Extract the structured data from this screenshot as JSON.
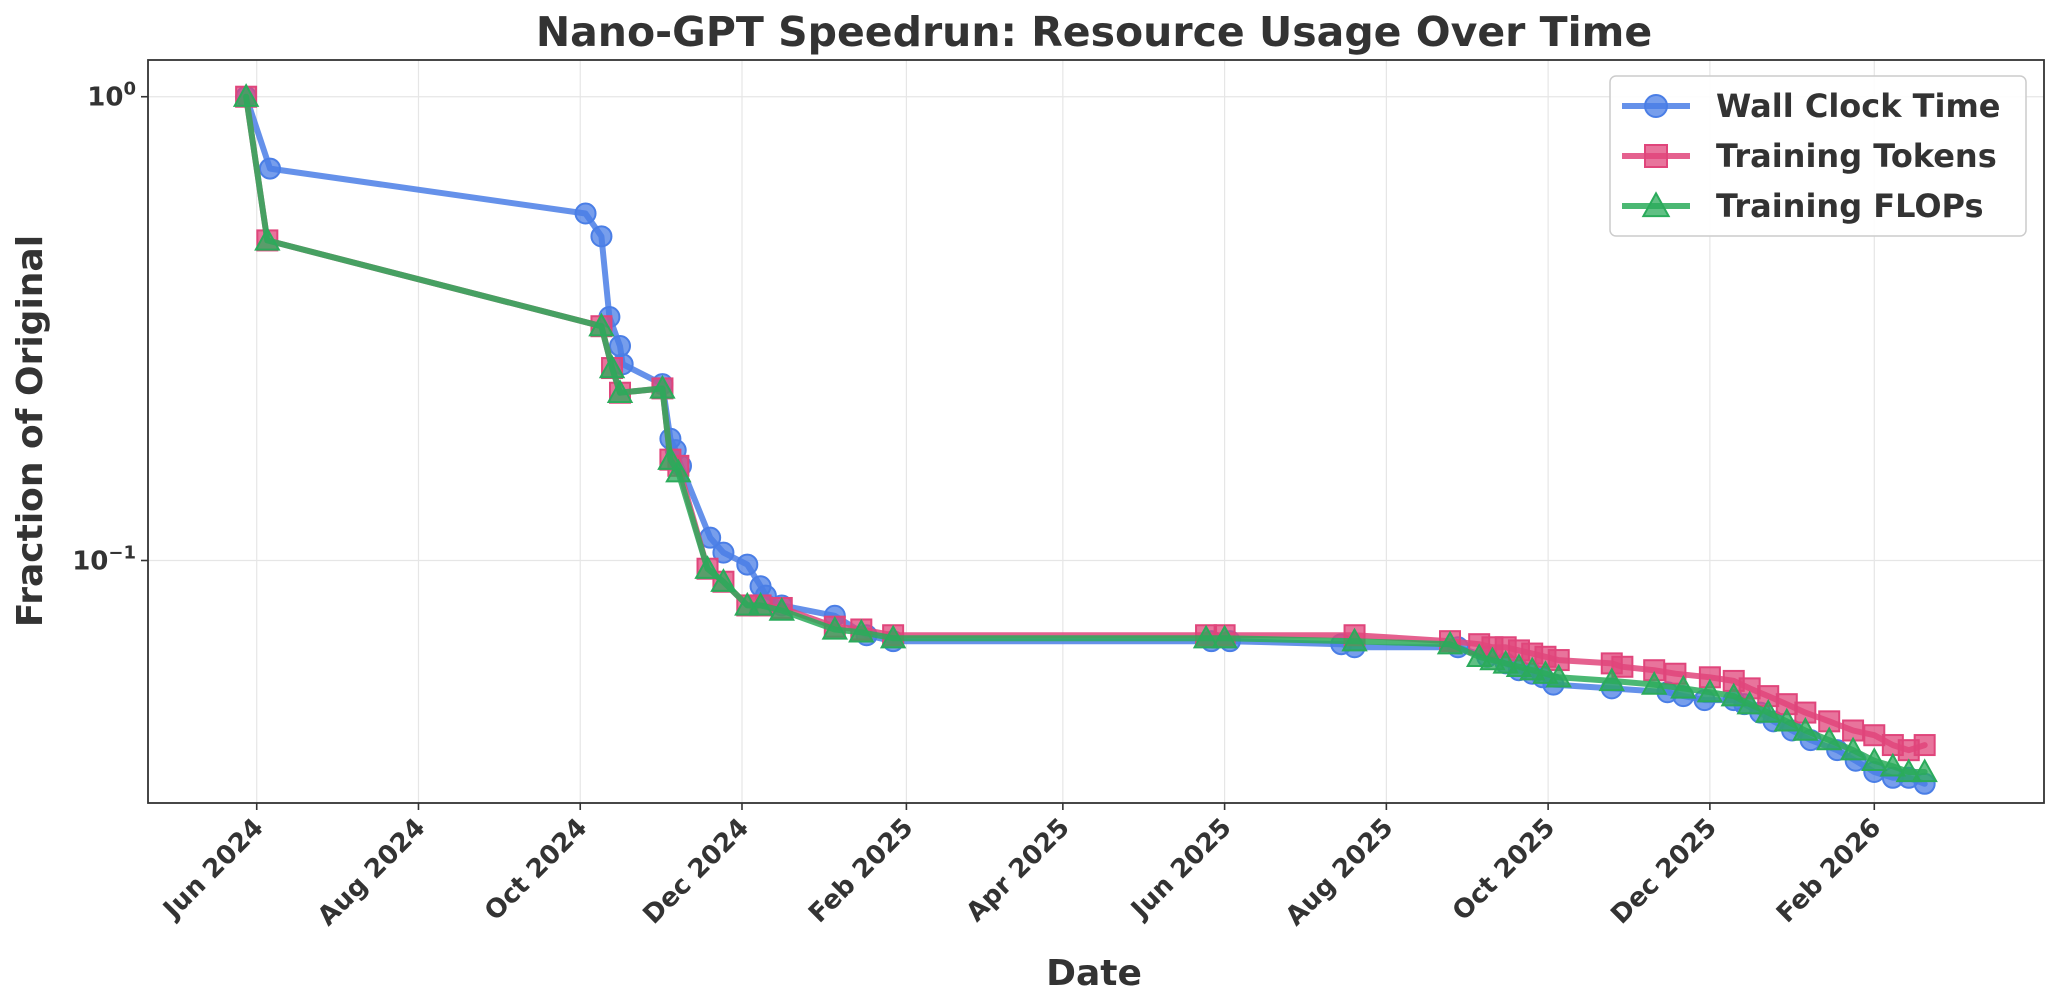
{
  "chart_data": {
    "type": "line",
    "title": "Nano-GPT Speedrun: Resource Usage Over Time",
    "xlabel": "Date",
    "ylabel": "Fraction of Original",
    "yscale": "log",
    "ylim": [
      0.03,
      1.2
    ],
    "xlim": [
      "2024-04-21",
      "2026-04-06"
    ],
    "grid": true,
    "legend_position": "top-right",
    "x_ticks": [
      {
        "date": "2024-06-01",
        "label": "Jun 2024"
      },
      {
        "date": "2024-08-01",
        "label": "Aug 2024"
      },
      {
        "date": "2024-10-01",
        "label": "Oct 2024"
      },
      {
        "date": "2024-12-01",
        "label": "Dec 2024"
      },
      {
        "date": "2025-02-01",
        "label": "Feb 2025"
      },
      {
        "date": "2025-04-01",
        "label": "Apr 2025"
      },
      {
        "date": "2025-06-01",
        "label": "Jun 2025"
      },
      {
        "date": "2025-08-01",
        "label": "Aug 2025"
      },
      {
        "date": "2025-10-01",
        "label": "Oct 2025"
      },
      {
        "date": "2025-12-01",
        "label": "Dec 2025"
      },
      {
        "date": "2026-02-01",
        "label": "Feb 2026"
      }
    ],
    "y_ticks": [
      {
        "value": 1,
        "base": "10",
        "exp": "0"
      },
      {
        "value": 0.1,
        "base": "10",
        "exp": "−1"
      }
    ],
    "series": [
      {
        "name": "Wall Clock Time",
        "color": "#4a7ee6",
        "marker": "circle",
        "points": [
          [
            "2024-05-28",
            1.0
          ],
          [
            "2024-06-06",
            0.7
          ],
          [
            "2024-10-03",
            0.56
          ],
          [
            "2024-10-09",
            0.5
          ],
          [
            "2024-10-12",
            0.335
          ],
          [
            "2024-10-16",
            0.29
          ],
          [
            "2024-10-17",
            0.265
          ],
          [
            "2024-11-01",
            0.24
          ],
          [
            "2024-11-04",
            0.183
          ],
          [
            "2024-11-06",
            0.173
          ],
          [
            "2024-11-08",
            0.16
          ],
          [
            "2024-11-19",
            0.112
          ],
          [
            "2024-11-24",
            0.104
          ],
          [
            "2024-12-03",
            0.098
          ],
          [
            "2024-12-08",
            0.088
          ],
          [
            "2024-12-10",
            0.084
          ],
          [
            "2024-12-16",
            0.08
          ],
          [
            "2025-01-05",
            0.076
          ],
          [
            "2025-01-17",
            0.069
          ],
          [
            "2025-01-27",
            0.067
          ],
          [
            "2025-05-27",
            0.067
          ],
          [
            "2025-06-03",
            0.067
          ],
          [
            "2025-07-15",
            0.066
          ],
          [
            "2025-07-20",
            0.065
          ],
          [
            "2025-08-28",
            0.065
          ],
          [
            "2025-09-08",
            0.062
          ],
          [
            "2025-09-15",
            0.06
          ],
          [
            "2025-09-20",
            0.058
          ],
          [
            "2025-09-25",
            0.057
          ],
          [
            "2025-09-29",
            0.056
          ],
          [
            "2025-10-03",
            0.054
          ],
          [
            "2025-10-25",
            0.053
          ],
          [
            "2025-11-15",
            0.052
          ],
          [
            "2025-11-21",
            0.051
          ],
          [
            "2025-11-29",
            0.05
          ],
          [
            "2025-12-10",
            0.05
          ],
          [
            "2025-12-14",
            0.049
          ],
          [
            "2025-12-20",
            0.047
          ],
          [
            "2025-12-25",
            0.045
          ],
          [
            "2026-01-01",
            0.043
          ],
          [
            "2026-01-08",
            0.041
          ],
          [
            "2026-01-18",
            0.039
          ],
          [
            "2026-01-25",
            0.037
          ],
          [
            "2026-02-01",
            0.035
          ],
          [
            "2026-02-08",
            0.034
          ],
          [
            "2026-02-14",
            0.034
          ],
          [
            "2026-02-20",
            0.033
          ]
        ]
      },
      {
        "name": "Training Tokens",
        "color": "#e0457b",
        "marker": "square",
        "points": [
          [
            "2024-05-28",
            1.0
          ],
          [
            "2024-06-05",
            0.49
          ],
          [
            "2024-10-09",
            0.32
          ],
          [
            "2024-10-13",
            0.26
          ],
          [
            "2024-10-16",
            0.23
          ],
          [
            "2024-11-01",
            0.235
          ],
          [
            "2024-11-04",
            0.165
          ],
          [
            "2024-11-07",
            0.16
          ],
          [
            "2024-11-18",
            0.096
          ],
          [
            "2024-11-24",
            0.09
          ],
          [
            "2024-12-03",
            0.08
          ],
          [
            "2024-12-08",
            0.08
          ],
          [
            "2024-12-16",
            0.079
          ],
          [
            "2025-01-05",
            0.072
          ],
          [
            "2025-01-15",
            0.071
          ],
          [
            "2025-01-27",
            0.069
          ],
          [
            "2025-05-25",
            0.069
          ],
          [
            "2025-06-01",
            0.069
          ],
          [
            "2025-07-20",
            0.069
          ],
          [
            "2025-08-25",
            0.067
          ],
          [
            "2025-09-05",
            0.066
          ],
          [
            "2025-09-10",
            0.065
          ],
          [
            "2025-09-15",
            0.065
          ],
          [
            "2025-09-20",
            0.064
          ],
          [
            "2025-09-25",
            0.063
          ],
          [
            "2025-09-30",
            0.062
          ],
          [
            "2025-10-05",
            0.061
          ],
          [
            "2025-10-25",
            0.06
          ],
          [
            "2025-10-29",
            0.059
          ],
          [
            "2025-11-10",
            0.058
          ],
          [
            "2025-11-18",
            0.057
          ],
          [
            "2025-12-01",
            0.056
          ],
          [
            "2025-12-10",
            0.055
          ],
          [
            "2025-12-16",
            0.053
          ],
          [
            "2025-12-23",
            0.051
          ],
          [
            "2025-12-30",
            0.049
          ],
          [
            "2026-01-06",
            0.047
          ],
          [
            "2026-01-15",
            0.045
          ],
          [
            "2026-01-24",
            0.043
          ],
          [
            "2026-02-01",
            0.042
          ],
          [
            "2026-02-08",
            0.04
          ],
          [
            "2026-02-14",
            0.039
          ],
          [
            "2026-02-20",
            0.04
          ]
        ]
      },
      {
        "name": "Training FLOPs",
        "color": "#2bab5b",
        "marker": "triangle",
        "points": [
          [
            "2024-05-28",
            1.0
          ],
          [
            "2024-06-05",
            0.49
          ],
          [
            "2024-10-09",
            0.32
          ],
          [
            "2024-10-13",
            0.26
          ],
          [
            "2024-10-16",
            0.23
          ],
          [
            "2024-11-01",
            0.235
          ],
          [
            "2024-11-04",
            0.165
          ],
          [
            "2024-11-07",
            0.155
          ],
          [
            "2024-11-18",
            0.096
          ],
          [
            "2024-11-24",
            0.09
          ],
          [
            "2024-12-03",
            0.08
          ],
          [
            "2024-12-08",
            0.08
          ],
          [
            "2024-12-16",
            0.078
          ],
          [
            "2025-01-05",
            0.071
          ],
          [
            "2025-01-15",
            0.07
          ],
          [
            "2025-01-27",
            0.068
          ],
          [
            "2025-05-25",
            0.068
          ],
          [
            "2025-06-01",
            0.068
          ],
          [
            "2025-07-20",
            0.067
          ],
          [
            "2025-08-25",
            0.066
          ],
          [
            "2025-09-05",
            0.062
          ],
          [
            "2025-09-10",
            0.061
          ],
          [
            "2025-09-15",
            0.06
          ],
          [
            "2025-09-20",
            0.059
          ],
          [
            "2025-09-25",
            0.058
          ],
          [
            "2025-09-30",
            0.057
          ],
          [
            "2025-10-05",
            0.056
          ],
          [
            "2025-10-25",
            0.055
          ],
          [
            "2025-11-10",
            0.054
          ],
          [
            "2025-11-21",
            0.053
          ],
          [
            "2025-12-01",
            0.052
          ],
          [
            "2025-12-10",
            0.051
          ],
          [
            "2025-12-16",
            0.049
          ],
          [
            "2025-12-23",
            0.047
          ],
          [
            "2025-12-30",
            0.045
          ],
          [
            "2026-01-06",
            0.043
          ],
          [
            "2026-01-15",
            0.041
          ],
          [
            "2026-01-24",
            0.039
          ],
          [
            "2026-02-01",
            0.037
          ],
          [
            "2026-02-08",
            0.036
          ],
          [
            "2026-02-14",
            0.035
          ],
          [
            "2026-02-20",
            0.035
          ]
        ]
      }
    ]
  }
}
